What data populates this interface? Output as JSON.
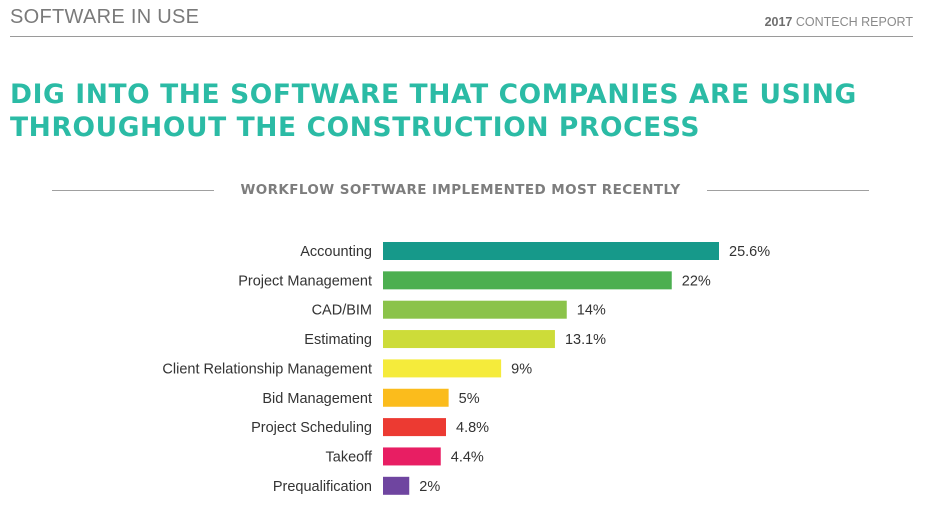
{
  "header": {
    "section_title": "SOFTWARE IN USE",
    "report_year": "2017",
    "report_name": "CONTECH REPORT"
  },
  "headline": {
    "line1": "DIG INTO THE SOFTWARE THAT COMPANIES ARE USING",
    "line2": "THROUGHOUT THE CONSTRUCTION PROCESS"
  },
  "chart_data": {
    "type": "bar",
    "orientation": "horizontal",
    "title": "WORKFLOW SOFTWARE IMPLEMENTED MOST RECENTLY",
    "categories": [
      "Accounting",
      "Project Management",
      "CAD/BIM",
      "Estimating",
      "Client Relationship Management",
      "Bid Management",
      "Project Scheduling",
      "Takeoff",
      "Prequalification"
    ],
    "values": [
      25.6,
      22,
      14,
      13.1,
      9,
      5,
      4.8,
      4.4,
      2
    ],
    "value_labels": [
      "25.6%",
      "22%",
      "14%",
      "13.1%",
      "9%",
      "5%",
      "4.8%",
      "4.4%",
      "2%"
    ],
    "colors": [
      "#16998a",
      "#4caf50",
      "#8bc34a",
      "#cddc39",
      "#f5eb3b",
      "#fbbc1c",
      "#ec3a32",
      "#e81e63",
      "#6f45a0"
    ],
    "xlim": [
      0,
      25.6
    ],
    "grid": false,
    "legend": "none"
  }
}
